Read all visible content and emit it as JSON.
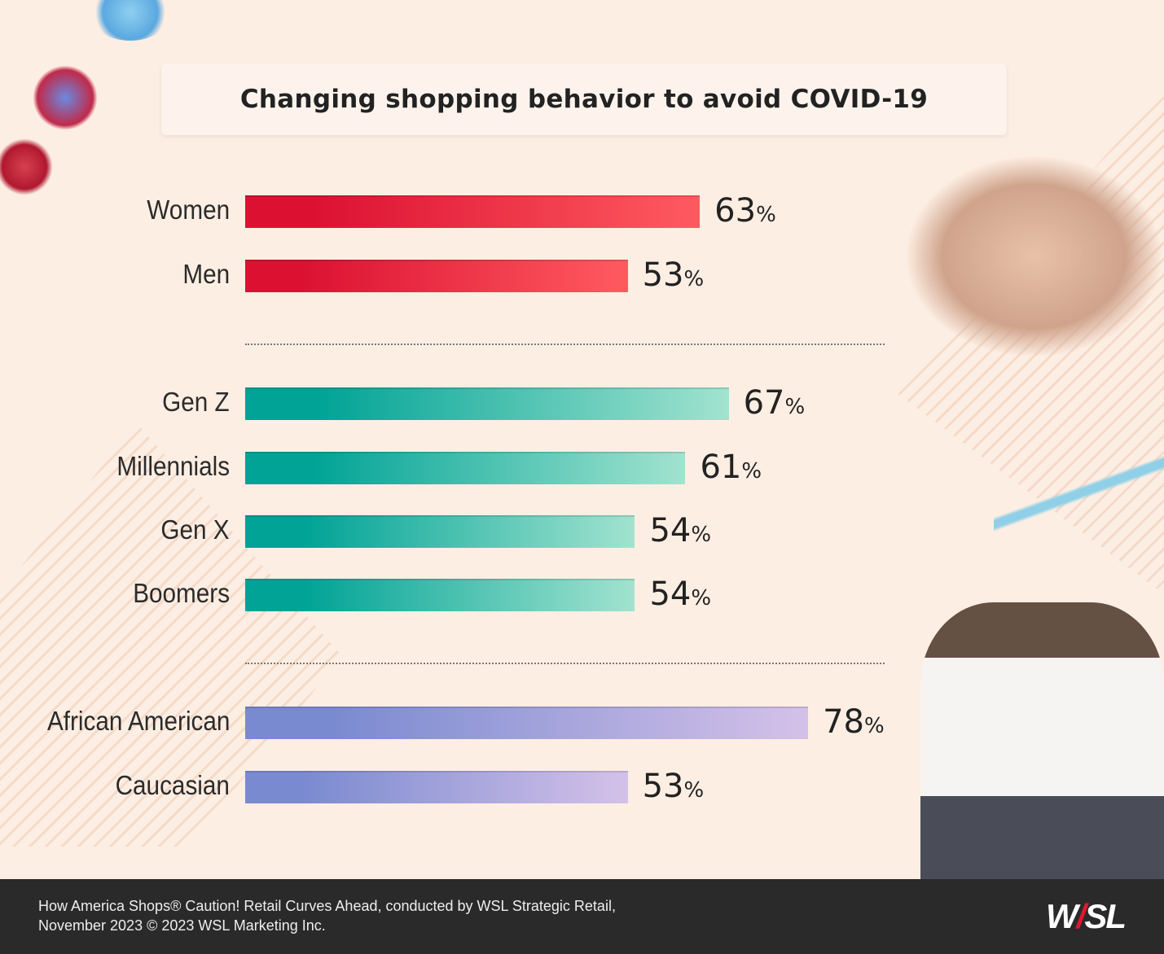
{
  "chart_data": {
    "type": "bar",
    "orientation": "horizontal",
    "title": "Changing shopping behavior to avoid COVID-19",
    "categories": [
      "Women",
      "Men",
      "Gen Z",
      "Millennials",
      "Gen X",
      "Boomers",
      "African American",
      "Caucasian"
    ],
    "values": [
      63,
      53,
      67,
      61,
      54,
      54,
      78,
      53
    ],
    "value_suffix": "%",
    "groups": [
      {
        "members": [
          "Women",
          "Men"
        ],
        "color_start": "#dc1132",
        "color_end": "#ff5a60"
      },
      {
        "members": [
          "Gen Z",
          "Millennials",
          "Gen X",
          "Boomers"
        ],
        "color_start": "#00a396",
        "color_end": "#a1e3cf"
      },
      {
        "members": [
          "African American",
          "Caucasian"
        ],
        "color_start": "#7a8ad0",
        "color_end": "#d4c1e9"
      }
    ],
    "xlim": [
      0,
      100
    ],
    "grid": false,
    "legend": "none"
  },
  "footer": {
    "source_line1": "How America Shops® Caution! Retail Curves Ahead, conducted by WSL Strategic Retail,",
    "source_line2": "November 2023 © 2023 WSL Marketing Inc.",
    "logo_text": "WSL"
  }
}
